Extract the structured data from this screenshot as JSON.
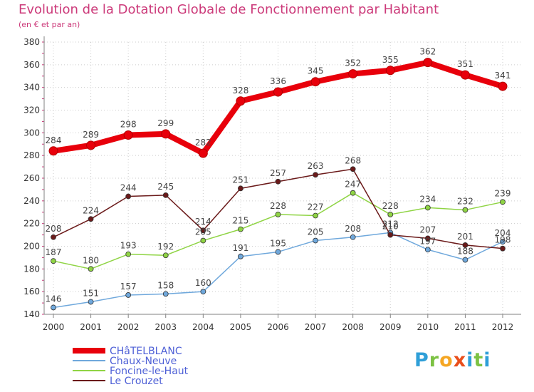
{
  "header": {
    "title": "Evolution de la Dotation Globale de Fonctionnement par Habitant",
    "subtitle": "(en € et par an)"
  },
  "logo": {
    "letters": [
      "P",
      "r",
      "o",
      "x",
      "i",
      "t",
      "i"
    ]
  },
  "colors": {
    "title": "#cc3a7a",
    "grid": "#cccccc",
    "axis": "#808080"
  },
  "chart_data": {
    "type": "line",
    "title": "Evolution de la Dotation Globale de Fonctionnement par Habitant",
    "subtitle": "(en € et par an)",
    "xlabel": "",
    "ylabel": "",
    "ylim": [
      140,
      380
    ],
    "yticks": [
      140,
      160,
      180,
      200,
      220,
      240,
      260,
      280,
      300,
      320,
      340,
      360,
      380
    ],
    "categories": [
      "2000",
      "2001",
      "2002",
      "2003",
      "2004",
      "2005",
      "2006",
      "2007",
      "2008",
      "2009",
      "2010",
      "2011",
      "2012"
    ],
    "grid": true,
    "legend_position": "bottom-left",
    "series": [
      {
        "name": "CHâTELBLANC",
        "color": "#e8000b",
        "values": [
          284,
          289,
          298,
          299,
          282,
          328,
          336,
          345,
          352,
          355,
          362,
          351,
          341
        ]
      },
      {
        "name": "Chaux-Neuve",
        "color": "#6fa8dc",
        "values": [
          146,
          151,
          157,
          158,
          160,
          191,
          195,
          205,
          208,
          212,
          197,
          188,
          204
        ]
      },
      {
        "name": "Foncine-le-Haut",
        "color": "#8fd444",
        "values": [
          187,
          180,
          193,
          192,
          205,
          215,
          228,
          227,
          247,
          228,
          234,
          232,
          239
        ]
      },
      {
        "name": "Le Crouzet",
        "color": "#6b1a1a",
        "values": [
          208,
          224,
          244,
          245,
          214,
          251,
          257,
          263,
          268,
          210,
          207,
          201,
          198
        ]
      }
    ]
  }
}
